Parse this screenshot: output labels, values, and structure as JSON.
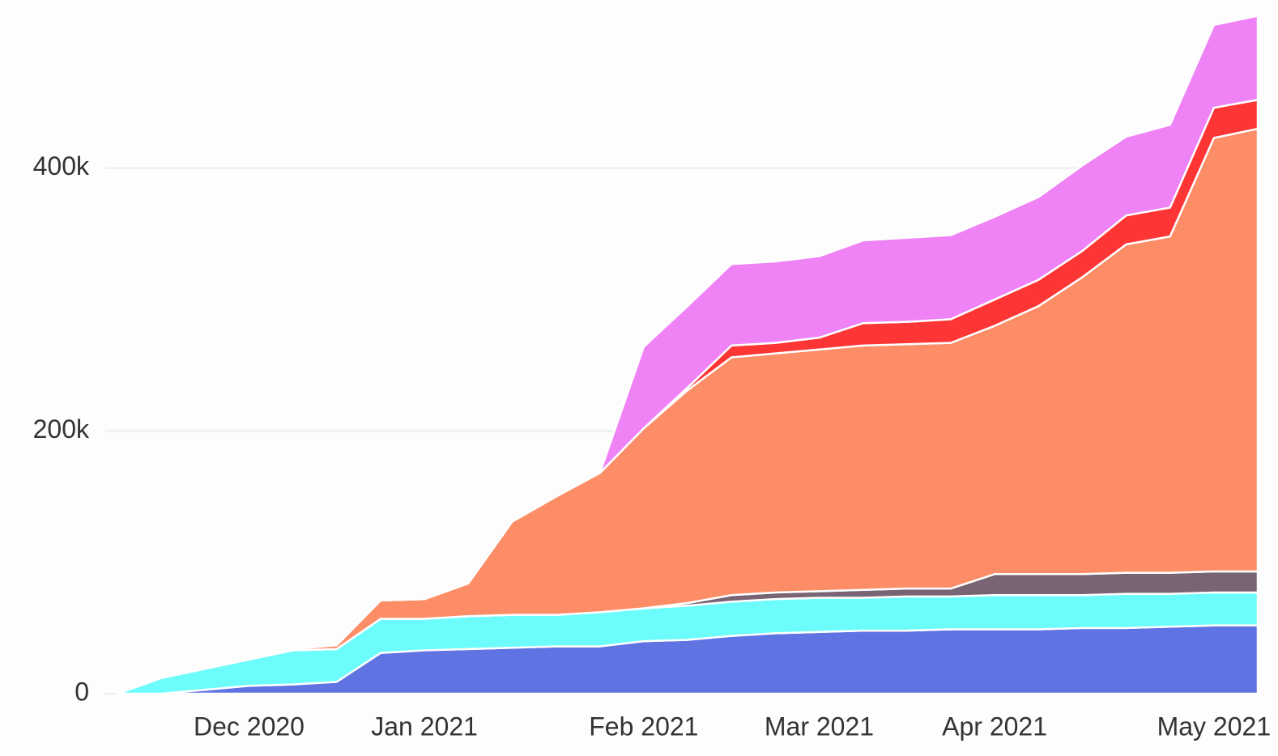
{
  "chart_data": {
    "type": "stacked_area",
    "categories": [
      null,
      null,
      null,
      "Dec 2020",
      null,
      null,
      null,
      "Jan 2021",
      null,
      null,
      null,
      null,
      "Feb 2021",
      null,
      null,
      null,
      "Mar 2021",
      null,
      null,
      null,
      "Apr 2021",
      null,
      null,
      null,
      null,
      "May 2021",
      null
    ],
    "series": [
      {
        "color": "#5f73e3",
        "values": [
          0,
          0,
          3000,
          6000,
          7000,
          9000,
          31000,
          33000,
          34000,
          35000,
          36000,
          36000,
          40000,
          41000,
          44000,
          46000,
          47000,
          48000,
          48000,
          49000,
          49000,
          49000,
          50000,
          50000,
          51000,
          52000,
          52000
        ]
      },
      {
        "color": "#6cfcfc",
        "values": [
          0,
          12000,
          16000,
          20000,
          26000,
          25000,
          26000,
          24000,
          25000,
          25000,
          24000,
          26000,
          25000,
          26000,
          26000,
          26000,
          26000,
          25000,
          26000,
          25000,
          26000,
          26000,
          25000,
          26000,
          25000,
          25000,
          25000
        ]
      },
      {
        "color": "#786473",
        "values": [
          0,
          0,
          0,
          0,
          0,
          0,
          0,
          0,
          0,
          0,
          0,
          0,
          0,
          2000,
          5000,
          5000,
          5000,
          6000,
          6000,
          6000,
          16000,
          16000,
          16000,
          16000,
          16000,
          16000,
          16000
        ]
      },
      {
        "color": "#fd8d67",
        "values": [
          0,
          0,
          0,
          0,
          1000,
          3000,
          14000,
          15000,
          25000,
          71000,
          90000,
          106000,
          137000,
          162000,
          181000,
          182000,
          184000,
          186000,
          186000,
          187000,
          189000,
          204000,
          226000,
          250000,
          256000,
          330000,
          337000
        ]
      },
      {
        "color": "#fd3535",
        "values": [
          0,
          0,
          0,
          0,
          0,
          0,
          0,
          0,
          0,
          0,
          0,
          0,
          0,
          2000,
          9000,
          8000,
          9000,
          17000,
          17000,
          18000,
          20000,
          20000,
          20000,
          22000,
          22000,
          23000,
          22000
        ]
      },
      {
        "color": "#ef82f5",
        "values": [
          0,
          0,
          0,
          0,
          0,
          0,
          0,
          0,
          0,
          0,
          0,
          0,
          62000,
          62000,
          62000,
          62000,
          62000,
          63000,
          64000,
          64000,
          63000,
          63000,
          65000,
          60000,
          63000,
          63000,
          64000
        ]
      }
    ],
    "ylim": [
      0,
      528000
    ],
    "yticks": [
      0,
      {
        "value": 200000,
        "label": "200k"
      },
      {
        "value": 400000,
        "label": "400k"
      }
    ],
    "grid": true
  }
}
